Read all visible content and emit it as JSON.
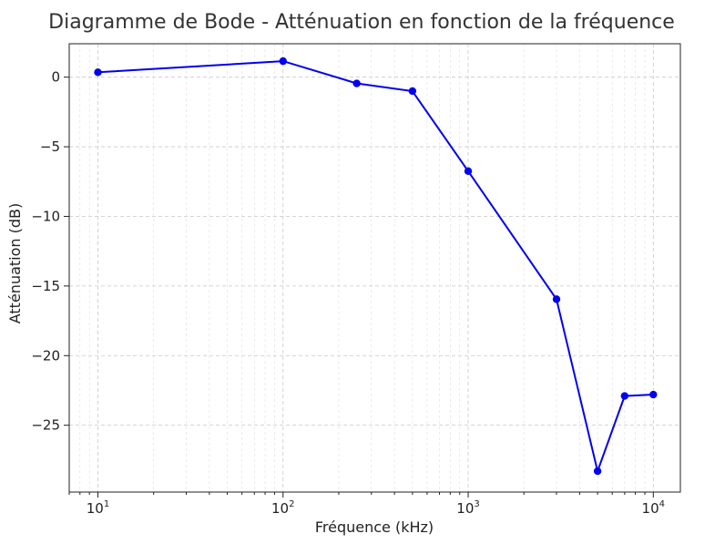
{
  "chart_data": {
    "type": "line",
    "title": "Diagramme de Bode - Atténuation en fonction de la fréquence",
    "xlabel": "Fréquence (kHz)",
    "ylabel": "Atténuation (dB)",
    "xscale": "log",
    "xlim": [
      7,
      14000
    ],
    "ylim": [
      -29.8,
      2.4
    ],
    "grid": true,
    "x_ticks": [
      {
        "base": "10",
        "exp": "1",
        "value": 10
      },
      {
        "base": "10",
        "exp": "2",
        "value": 100
      },
      {
        "base": "10",
        "exp": "3",
        "value": 1000
      },
      {
        "base": "10",
        "exp": "4",
        "value": 10000
      }
    ],
    "y_ticks": [
      {
        "label": "0",
        "value": 0
      },
      {
        "label": "−5",
        "value": -5
      },
      {
        "label": "−10",
        "value": -10
      },
      {
        "label": "−15",
        "value": -15
      },
      {
        "label": "−20",
        "value": -20
      },
      {
        "label": "−25",
        "value": -25
      }
    ],
    "series": [
      {
        "color": "#0000ee",
        "x": [
          10,
          100,
          250,
          500,
          1000,
          3000,
          5000,
          7000,
          10000
        ],
        "y": [
          0.35,
          1.15,
          -0.45,
          -1.0,
          -6.75,
          -15.95,
          -28.3,
          -22.9,
          -22.8
        ]
      }
    ]
  }
}
